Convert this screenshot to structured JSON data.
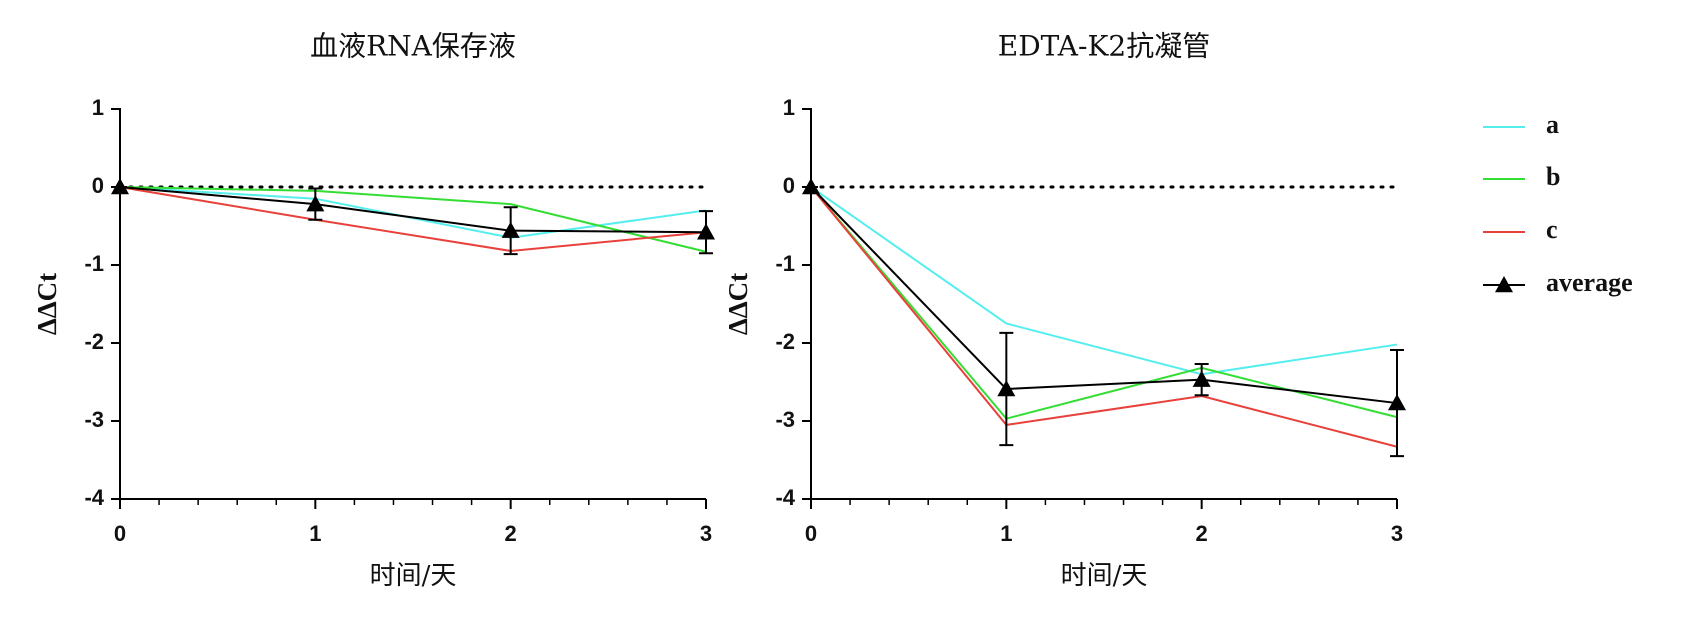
{
  "chart_data": [
    {
      "type": "line",
      "title": "血液RNA保存液",
      "x_label": "时间/天",
      "y_label": "ΔΔCt",
      "x": [
        0,
        1,
        2,
        3
      ],
      "xlim": [
        0,
        3
      ],
      "xticks": [
        0,
        1,
        2,
        3
      ],
      "ylim": [
        -4,
        1
      ],
      "yticks": [
        -4,
        -3,
        -2,
        -1,
        0,
        1
      ],
      "reference_line": 0,
      "series": [
        {
          "name": "a",
          "color": "#55eeee",
          "values": [
            0,
            -0.15,
            -0.65,
            -0.3
          ]
        },
        {
          "name": "b",
          "color": "#33dd33",
          "values": [
            0,
            -0.05,
            -0.22,
            -0.83
          ]
        },
        {
          "name": "c",
          "color": "#e8413c",
          "values": [
            0,
            -0.42,
            -0.82,
            -0.58
          ]
        },
        {
          "name": "average",
          "color": "#000000",
          "marker": "triangle",
          "values": [
            0,
            -0.22,
            -0.56,
            -0.58
          ],
          "errors": [
            0,
            0.2,
            0.3,
            0.27
          ]
        }
      ]
    },
    {
      "type": "line",
      "title": "EDTA-K2抗凝管",
      "x_label": "时间/天",
      "y_label": "ΔΔCt",
      "x": [
        0,
        1,
        2,
        3
      ],
      "xlim": [
        0,
        3
      ],
      "xticks": [
        0,
        1,
        2,
        3
      ],
      "ylim": [
        -4,
        1
      ],
      "yticks": [
        -4,
        -3,
        -2,
        -1,
        0,
        1
      ],
      "reference_line": 0,
      "series": [
        {
          "name": "a",
          "color": "#55eeee",
          "values": [
            0,
            -1.75,
            -2.4,
            -2.02
          ]
        },
        {
          "name": "b",
          "color": "#33dd33",
          "values": [
            0,
            -2.97,
            -2.32,
            -2.95
          ]
        },
        {
          "name": "c",
          "color": "#e8413c",
          "values": [
            0,
            -3.05,
            -2.68,
            -3.33
          ]
        },
        {
          "name": "average",
          "color": "#000000",
          "marker": "triangle",
          "values": [
            0,
            -2.59,
            -2.47,
            -2.77
          ],
          "errors": [
            0,
            0.72,
            0.2,
            0.68
          ]
        }
      ]
    }
  ]
}
